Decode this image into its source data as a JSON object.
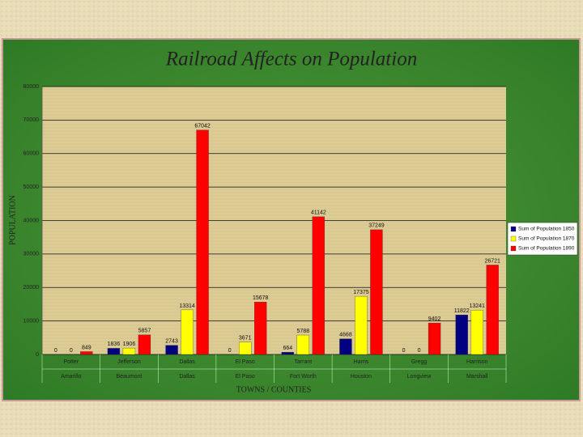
{
  "chart_data": {
    "type": "bar",
    "title": "Railroad Affects on Population",
    "y_label": "POPULATION",
    "x_label": "TOWNS / COUNTIES",
    "categories": [
      "Potter",
      "Jefferson",
      "Dallas",
      "El Paso",
      "Tarrant",
      "Harris",
      "Gregg",
      "Harrison"
    ],
    "towns": [
      "Amarillo",
      "Beaumont",
      "Dallas",
      "El Paso",
      "Fort Worth",
      "Houston",
      "Longview",
      "Marshall"
    ],
    "series": [
      {
        "name": "Sum of Population 1850",
        "color": "#000080",
        "values": [
          0,
          1836,
          2743,
          0,
          664,
          4668,
          0,
          11822
        ]
      },
      {
        "name": "Sum of Population 1870",
        "color": "#ffff00",
        "values": [
          0,
          1906,
          13314,
          3671,
          5788,
          17375,
          0,
          13241
        ]
      },
      {
        "name": "Sum of Population 1890",
        "color": "#ff0000",
        "values": [
          849,
          5857,
          67042,
          15678,
          41142,
          37249,
          9402,
          26721
        ]
      }
    ],
    "ylim": [
      0,
      80000
    ],
    "yticks": [
      0,
      10000,
      20000,
      30000,
      40000,
      50000,
      60000,
      70000,
      80000
    ],
    "grid": true,
    "legend": "right"
  }
}
